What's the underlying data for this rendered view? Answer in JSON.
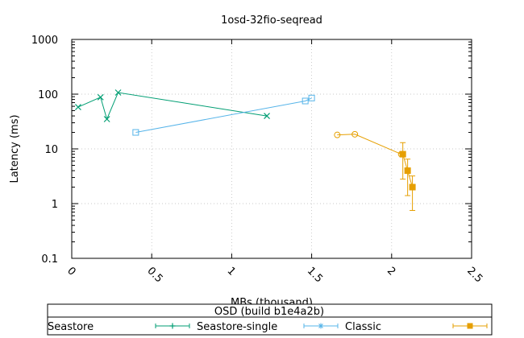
{
  "chart_data": {
    "type": "line",
    "title": "1osd-32fio-seqread",
    "xlabel": "MBs (thousand)",
    "ylabel": "Latency (ms)",
    "xlim": [
      0,
      2.5
    ],
    "ylim": [
      0.1,
      1000
    ],
    "y_scale": "log",
    "grid": true,
    "x_ticks": [
      "0",
      "0.5",
      "1",
      "1.5",
      "2",
      "2.5"
    ],
    "x_tick_values": [
      0,
      0.5,
      1,
      1.5,
      2,
      2.5
    ],
    "y_ticks": [
      "0.1",
      "1",
      "10",
      "100",
      "1000"
    ],
    "y_tick_values": [
      0.1,
      1,
      10,
      100,
      1000
    ],
    "legend": {
      "title": "OSD (build b1e4a2b)",
      "placement": "bottom",
      "entries": [
        "Seastore",
        "Seastore-single",
        "Classic"
      ]
    },
    "series": [
      {
        "name": "Seastore",
        "color": "#009e73",
        "marker": "x",
        "points": [
          {
            "x": 0.04,
            "y": 58
          },
          {
            "x": 0.18,
            "y": 88
          },
          {
            "x": 0.22,
            "y": 35
          },
          {
            "x": 0.29,
            "y": 107
          },
          {
            "x": 1.22,
            "y": 40
          }
        ]
      },
      {
        "name": "Seastore-single",
        "color": "#56b4e9",
        "marker": "square-open",
        "points": [
          {
            "x": 0.4,
            "y": 20
          },
          {
            "x": 1.46,
            "y": 75
          },
          {
            "x": 1.5,
            "y": 85
          }
        ]
      },
      {
        "name": "Classic",
        "color": "#e69f00",
        "marker": "circle-open",
        "points": [
          {
            "x": 1.66,
            "y": 18
          },
          {
            "x": 1.77,
            "y": 18.5
          },
          {
            "x": 2.06,
            "y": 8
          }
        ]
      },
      {
        "name": "",
        "color": "#e69f00",
        "marker": "square-filled",
        "errorbars": true,
        "points": [
          {
            "x": 2.07,
            "y": 8,
            "ylow": 2.8,
            "yhigh": 13
          },
          {
            "x": 2.1,
            "y": 4,
            "ylow": 1.4,
            "yhigh": 6.5
          },
          {
            "x": 2.13,
            "y": 2,
            "ylow": 0.75,
            "yhigh": 3.2
          }
        ]
      }
    ]
  }
}
